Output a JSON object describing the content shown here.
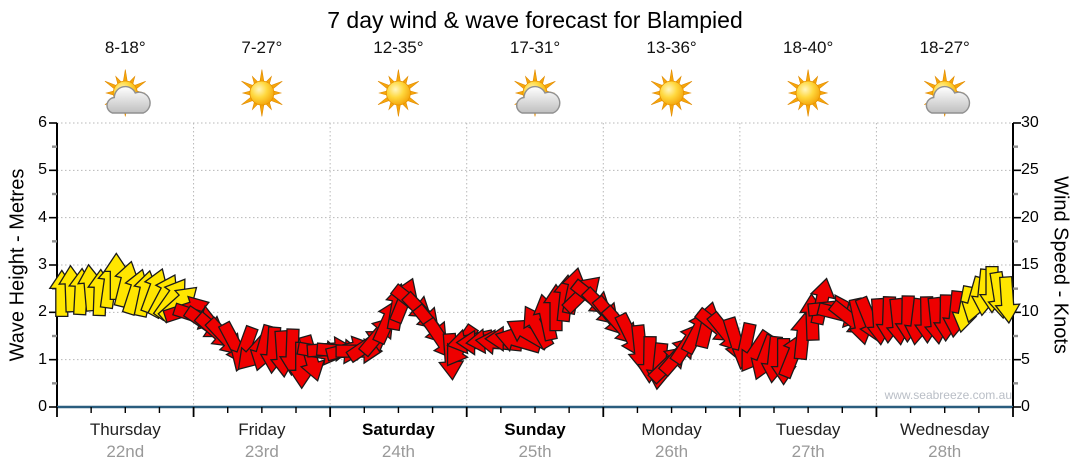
{
  "title": "7 day wind & wave forecast for Blampied",
  "watermark": "www.seabreeze.com.au",
  "left_axis": {
    "label": "Wave Height - Metres",
    "min": 0,
    "max": 6,
    "major_step": 1,
    "minor_step": 0.5,
    "ticks": [
      0,
      1,
      2,
      3,
      4,
      5,
      6
    ]
  },
  "right_axis": {
    "label": "Wind Speed - Knots",
    "min": 0,
    "max": 30,
    "major_step": 5,
    "minor_step": 2.5,
    "ticks": [
      0,
      5,
      10,
      15,
      20,
      25,
      30
    ]
  },
  "days": [
    {
      "name": "Thursday",
      "date": "22nd",
      "temp": "8-18°",
      "icon": "sun-cloud",
      "bold": false
    },
    {
      "name": "Friday",
      "date": "23rd",
      "temp": "7-27°",
      "icon": "sun",
      "bold": false
    },
    {
      "name": "Saturday",
      "date": "24th",
      "temp": "12-35°",
      "icon": "sun",
      "bold": true
    },
    {
      "name": "Sunday",
      "date": "25th",
      "temp": "17-31°",
      "icon": "sun-cloud",
      "bold": true
    },
    {
      "name": "Monday",
      "date": "26th",
      "temp": "13-36°",
      "icon": "sun",
      "bold": false
    },
    {
      "name": "Tuesday",
      "date": "27th",
      "temp": "18-40°",
      "icon": "sun",
      "bold": false
    },
    {
      "name": "Wednesday",
      "date": "28th",
      "temp": "18-27°",
      "icon": "sun-cloud",
      "bold": false
    }
  ],
  "chart_data": {
    "type": "wind-arrow-forecast",
    "title": "7 day wind & wave forecast for Blampied",
    "categories": [
      "Thursday 22nd",
      "Friday 23rd",
      "Saturday 24th",
      "Sunday 25th",
      "Monday 26th",
      "Tuesday 27th",
      "Wednesday 28th"
    ],
    "y_left": {
      "label": "Wave Height - Metres",
      "min": 0,
      "max": 6,
      "major_step": 1,
      "minor_step": 0.5
    },
    "y_right": {
      "label": "Wind Speed - Knots",
      "min": 0,
      "max": 30,
      "major_step": 5,
      "minor_step": 2.5
    },
    "grid": {
      "horizontal_dotted_at_knots": [
        5,
        10,
        15,
        20,
        25,
        30
      ],
      "vertical_dotted_at_day_boundaries": true
    },
    "legend": "none",
    "arrow_colors": {
      "y": "#ffe600",
      "r": "#ee0000"
    },
    "arrow_direction_convention": "0 = arrow points up (N), 90 = right (E), 180 = down (S), 270 = left (W)",
    "arrows": [
      [
        0.005,
        12.0,
        0,
        "y"
      ],
      [
        0.015,
        12.5,
        358,
        "y"
      ],
      [
        0.025,
        12.2,
        3,
        "y"
      ],
      [
        0.035,
        12.6,
        355,
        "y"
      ],
      [
        0.045,
        12.1,
        2,
        "y"
      ],
      [
        0.055,
        12.9,
        8,
        "y"
      ],
      [
        0.062,
        13.8,
        0,
        "y"
      ],
      [
        0.072,
        13.0,
        14,
        "y"
      ],
      [
        0.082,
        12.2,
        18,
        "y"
      ],
      [
        0.092,
        12.0,
        12,
        "y"
      ],
      [
        0.102,
        12.3,
        20,
        "y"
      ],
      [
        0.112,
        11.8,
        28,
        "y"
      ],
      [
        0.12,
        11.5,
        35,
        "y"
      ],
      [
        0.128,
        11.0,
        48,
        "y"
      ],
      [
        0.136,
        10.3,
        72,
        "r"
      ],
      [
        0.146,
        9.6,
        108,
        "r"
      ],
      [
        0.156,
        8.8,
        124,
        "r"
      ],
      [
        0.166,
        8.0,
        131,
        "r"
      ],
      [
        0.176,
        7.3,
        137,
        "r"
      ],
      [
        0.186,
        6.6,
        152,
        "r"
      ],
      [
        0.196,
        6.1,
        200,
        "r"
      ],
      [
        0.206,
        5.8,
        222,
        "r"
      ],
      [
        0.216,
        6.2,
        196,
        "r"
      ],
      [
        0.226,
        6.0,
        184,
        "r"
      ],
      [
        0.236,
        5.6,
        176,
        "r"
      ],
      [
        0.246,
        5.8,
        182,
        "r"
      ],
      [
        0.256,
        4.4,
        180,
        "r"
      ],
      [
        0.266,
        5.1,
        164,
        "r"
      ],
      [
        0.276,
        5.8,
        100,
        "r"
      ],
      [
        0.286,
        6.1,
        86,
        "r"
      ],
      [
        0.296,
        5.9,
        95,
        "r"
      ],
      [
        0.306,
        6.1,
        76,
        "r"
      ],
      [
        0.316,
        5.9,
        90,
        "r"
      ],
      [
        0.326,
        6.6,
        56,
        "r"
      ],
      [
        0.336,
        7.6,
        40,
        "r"
      ],
      [
        0.346,
        9.1,
        24,
        "r"
      ],
      [
        0.356,
        10.6,
        10,
        "r"
      ],
      [
        0.363,
        11.3,
        22,
        "r"
      ],
      [
        0.372,
        11.0,
        128,
        "r"
      ],
      [
        0.382,
        10.0,
        136,
        "r"
      ],
      [
        0.392,
        8.6,
        141,
        "r"
      ],
      [
        0.402,
        7.1,
        146,
        "r"
      ],
      [
        0.412,
        5.3,
        176,
        "r"
      ],
      [
        0.422,
        6.4,
        214,
        "r"
      ],
      [
        0.432,
        7.0,
        258,
        "r"
      ],
      [
        0.442,
        6.8,
        270,
        "r"
      ],
      [
        0.452,
        7.0,
        264,
        "r"
      ],
      [
        0.462,
        6.8,
        276,
        "r"
      ],
      [
        0.472,
        7.2,
        270,
        "r"
      ],
      [
        0.482,
        7.0,
        286,
        "r"
      ],
      [
        0.492,
        7.8,
        300,
        "r"
      ],
      [
        0.502,
        8.5,
        330,
        "r"
      ],
      [
        0.512,
        9.5,
        348,
        "r"
      ],
      [
        0.522,
        10.5,
        0,
        "r"
      ],
      [
        0.532,
        11.5,
        6,
        "r"
      ],
      [
        0.54,
        12.3,
        12,
        "r"
      ],
      [
        0.55,
        12.0,
        46,
        "r"
      ],
      [
        0.56,
        11.5,
        128,
        "r"
      ],
      [
        0.57,
        10.5,
        136,
        "r"
      ],
      [
        0.58,
        9.5,
        141,
        "r"
      ],
      [
        0.59,
        8.5,
        139,
        "r"
      ],
      [
        0.6,
        7.5,
        154,
        "r"
      ],
      [
        0.61,
        6.2,
        174,
        "r"
      ],
      [
        0.62,
        5.0,
        181,
        "r"
      ],
      [
        0.63,
        4.3,
        186,
        "r"
      ],
      [
        0.64,
        4.6,
        46,
        "r"
      ],
      [
        0.65,
        5.5,
        41,
        "r"
      ],
      [
        0.66,
        6.8,
        34,
        "r"
      ],
      [
        0.67,
        8.0,
        28,
        "r"
      ],
      [
        0.68,
        8.7,
        14,
        "r"
      ],
      [
        0.69,
        8.5,
        128,
        "r"
      ],
      [
        0.7,
        7.8,
        141,
        "r"
      ],
      [
        0.71,
        7.0,
        163,
        "r"
      ],
      [
        0.72,
        6.4,
        192,
        "r"
      ],
      [
        0.73,
        5.8,
        214,
        "r"
      ],
      [
        0.74,
        5.2,
        201,
        "r"
      ],
      [
        0.75,
        5.0,
        186,
        "r"
      ],
      [
        0.76,
        4.8,
        180,
        "r"
      ],
      [
        0.77,
        5.5,
        22,
        "r"
      ],
      [
        0.78,
        7.5,
        6,
        "r"
      ],
      [
        0.79,
        9.5,
        358,
        "r"
      ],
      [
        0.8,
        11.2,
        12,
        "r"
      ],
      [
        0.81,
        10.5,
        84,
        "r"
      ],
      [
        0.82,
        9.8,
        104,
        "r"
      ],
      [
        0.83,
        9.3,
        128,
        "r"
      ],
      [
        0.84,
        9.0,
        168,
        "r"
      ],
      [
        0.85,
        9.2,
        158,
        "r"
      ],
      [
        0.86,
        9.0,
        176,
        "r"
      ],
      [
        0.87,
        9.2,
        182,
        "r"
      ],
      [
        0.88,
        9.0,
        174,
        "r"
      ],
      [
        0.89,
        9.3,
        181,
        "r"
      ],
      [
        0.9,
        9.0,
        187,
        "r"
      ],
      [
        0.91,
        9.2,
        179,
        "r"
      ],
      [
        0.92,
        9.1,
        174,
        "r"
      ],
      [
        0.93,
        9.4,
        181,
        "r"
      ],
      [
        0.94,
        9.8,
        186,
        "r"
      ],
      [
        0.95,
        10.3,
        191,
        "y"
      ],
      [
        0.96,
        11.3,
        196,
        "y"
      ],
      [
        0.97,
        12.1,
        186,
        "y"
      ],
      [
        0.978,
        12.4,
        180,
        "y"
      ],
      [
        0.986,
        11.8,
        171,
        "y"
      ],
      [
        0.994,
        11.3,
        176,
        "y"
      ]
    ]
  },
  "colors": {
    "axis_bottom": "#2a5d7e",
    "grid": "#b8b8b8",
    "minor_tick": "#8e8e8e",
    "date_text": "#999999"
  }
}
